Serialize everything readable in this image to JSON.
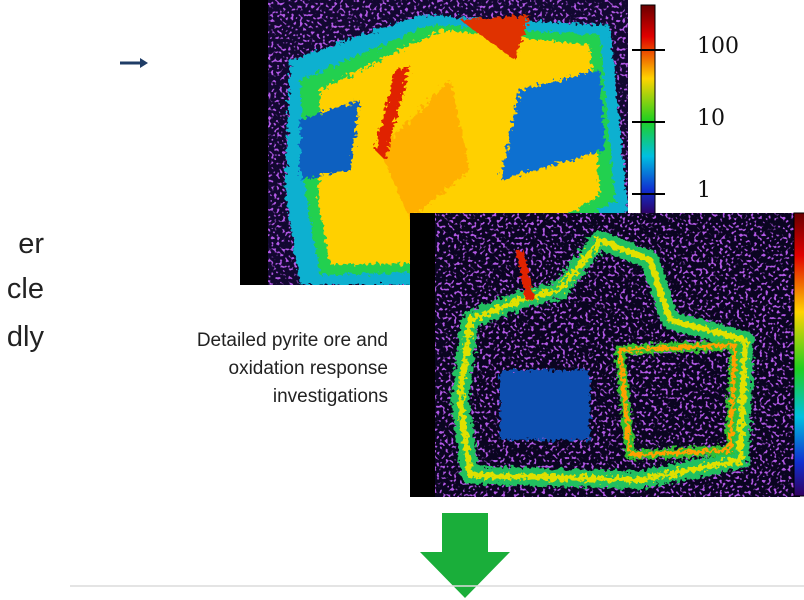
{
  "left_text": [
    "er",
    "cle",
    "dly"
  ],
  "colorbar_labels": [
    "100",
    "10",
    "1"
  ],
  "caption": [
    "Detailed pyrite ore and",
    "oxidation response",
    "investigations"
  ]
}
